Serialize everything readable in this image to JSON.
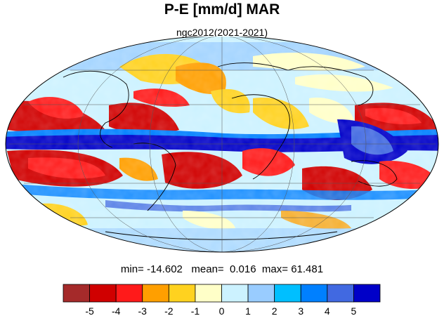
{
  "title": "P-E [mm/d] MAR",
  "subtitle": "ngc2012(2021-2021)",
  "stats": {
    "min_label": "min=",
    "min": "-14.602",
    "mean_label": "mean=",
    "mean": "0.016",
    "max_label": "max=",
    "max": "61.481"
  },
  "colorbar": {
    "colors": [
      "#a52a2a",
      "#d00000",
      "#ff1a1a",
      "#ff9f00",
      "#ffd21f",
      "#ffffc8",
      "#ccf2ff",
      "#99ccff",
      "#00bfff",
      "#0080ff",
      "#4169e1",
      "#0000c8"
    ],
    "tick_labels": [
      "-5",
      "-4",
      "-3",
      "-2",
      "-1",
      "0",
      "1",
      "2",
      "3",
      "4",
      "5"
    ]
  },
  "map": {
    "projection": "mollweide",
    "ocean_background": "#ccf2ff"
  }
}
